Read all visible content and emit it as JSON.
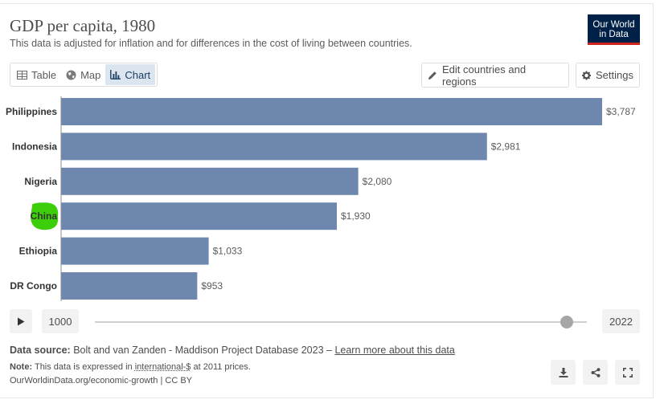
{
  "header": {
    "title": "GDP per capita, 1980",
    "subtitle": "This data is adjusted for inflation and for differences in the cost of living between countries.",
    "logo_line1": "Our World",
    "logo_line2": "in Data"
  },
  "tabs": [
    {
      "label": "Table",
      "icon": "table-icon",
      "active": false
    },
    {
      "label": "Map",
      "icon": "globe-icon",
      "active": false
    },
    {
      "label": "Chart",
      "icon": "bar-chart-icon",
      "active": true
    }
  ],
  "toolbar": {
    "edit_label": "Edit countries and regions",
    "settings_label": "Settings"
  },
  "colors": {
    "bar": "#6d87ae",
    "highlight": "#3ccf09",
    "label": "#333333",
    "value_label": "#5b5b5b",
    "axis": "#8c8c8c"
  },
  "chart_data": {
    "type": "bar",
    "orientation": "horizontal",
    "categories": [
      "Philippines",
      "Indonesia",
      "Nigeria",
      "China",
      "Ethiopia",
      "DR Congo"
    ],
    "values": [
      3787,
      2981,
      2080,
      1930,
      1033,
      953
    ],
    "value_labels": [
      "$3,787",
      "$2,981",
      "$2,080",
      "$1,930",
      "$1,033",
      "$953"
    ],
    "highlighted_category": "China",
    "xlim": [
      0,
      3787
    ]
  },
  "timeline": {
    "start_year": "1000",
    "end_year": "2022",
    "handle_position": 0.965
  },
  "footer": {
    "source_label": "Data source:",
    "source_text": "Bolt and van Zanden - Maddison Project Database 2023 –",
    "source_link": "Learn more about this data",
    "note_label": "Note:",
    "note_text": "This data is expressed in",
    "note_link": "international-$",
    "note_text2": "at 2011 prices.",
    "credit": "OurWorldinData.org/economic-growth | CC BY"
  }
}
